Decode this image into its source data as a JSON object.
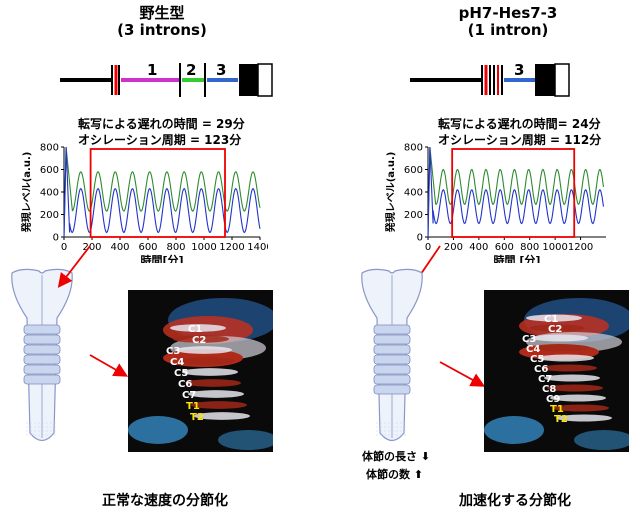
{
  "left": {
    "title": "野生型",
    "subtitle": "(3 introns)",
    "gene_labels": [
      "1",
      "2",
      "3"
    ],
    "delay_text": "転写による遅れの時間 = 29分",
    "period_text": "オシレーション周期 = 123分",
    "caption": "正常な速度の分節化",
    "vertebrae_labels": [
      "C1",
      "C2",
      "C3",
      "C4",
      "C5",
      "C6",
      "C7",
      "T1",
      "T2"
    ]
  },
  "right": {
    "title": "pH7-Hes7-3",
    "subtitle": "(1 intron)",
    "gene_labels": [
      "3"
    ],
    "delay_text": "転写による遅れの時間= 24分",
    "period_text": "オシレーション周期 = 112分",
    "caption": "加速化する分節化",
    "vertebrae_labels": [
      "C1",
      "C2",
      "C3",
      "C4",
      "C5",
      "C6",
      "C7",
      "C8",
      "C9",
      "T1",
      "T2"
    ],
    "legend": {
      "length_text": "体節の長さ",
      "count_text": "体節の数"
    }
  },
  "chart_data": [
    {
      "type": "line",
      "ylabel": "発現レベル(a.u.)",
      "xlabel": "時間[分]",
      "x_ticks": [
        "0",
        "200",
        "400",
        "600",
        "800",
        "1000",
        "1200",
        "1400"
      ],
      "y_ticks": [
        "0",
        "200",
        "400",
        "600",
        "800"
      ],
      "xlim": [
        0,
        1400
      ],
      "ylim": [
        0,
        800
      ],
      "period": 123,
      "series": [
        {
          "color": "#2e8b2e",
          "peak": 580,
          "trough": 230
        },
        {
          "color": "#2233cc",
          "peak": 430,
          "trough": 40
        }
      ]
    },
    {
      "type": "line",
      "ylabel": "発現レベル(a.u.)",
      "xlabel": "時間 [分]",
      "x_ticks": [
        "0",
        "200",
        "400",
        "600",
        "800",
        "1000",
        "1200"
      ],
      "y_ticks": [
        "0",
        "200",
        "400",
        "600",
        "800"
      ],
      "xlim": [
        0,
        1400
      ],
      "ylim": [
        0,
        800
      ],
      "period": 112,
      "series": [
        {
          "color": "#2e8b2e",
          "peak": 600,
          "trough": 290
        },
        {
          "color": "#2233cc",
          "peak": 420,
          "trough": 120
        }
      ]
    }
  ]
}
